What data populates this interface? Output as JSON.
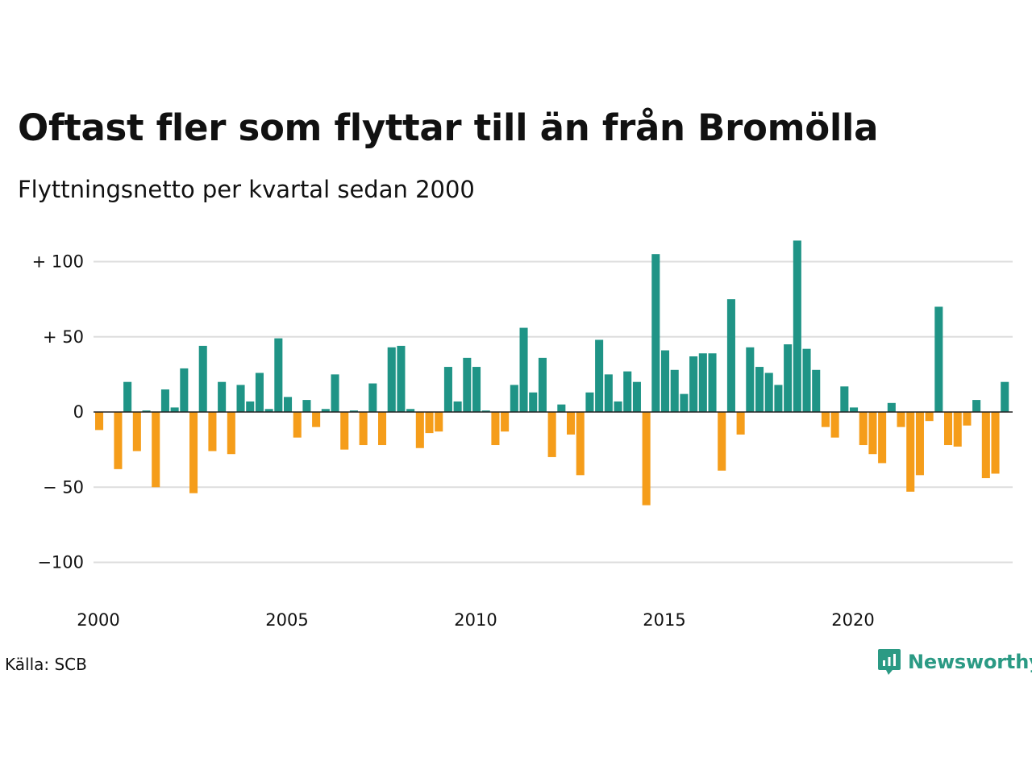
{
  "chart_data": {
    "type": "bar",
    "title": "Oftast fler som flyttar till än från Bromölla",
    "subtitle": "Flyttningsnetto per kvartal sedan 2000",
    "xlabel": "",
    "ylabel": "",
    "ylim": [
      -120,
      115
    ],
    "grid": true,
    "x_start": 2000,
    "x_ticks": [
      2000,
      2005,
      2010,
      2015,
      2020
    ],
    "x_tick_labels": [
      "2000",
      "2005",
      "2010",
      "2015",
      "2020"
    ],
    "y_ticks": [
      100,
      50,
      0,
      -50,
      -100
    ],
    "y_tick_labels": [
      "+ 100",
      "+  50",
      "0",
      "− 50",
      "−100"
    ],
    "positive_color": "#1f9486",
    "negative_color": "#f59d1a",
    "values": [
      -12,
      0,
      -38,
      20,
      -26,
      1,
      -50,
      15,
      3,
      29,
      -54,
      44,
      -26,
      20,
      -28,
      18,
      7,
      26,
      2,
      49,
      10,
      -17,
      8,
      -10,
      2,
      25,
      -25,
      1,
      -22,
      19,
      -22,
      43,
      44,
      2,
      -24,
      -14,
      -13,
      30,
      7,
      36,
      30,
      1,
      -22,
      -13,
      18,
      56,
      13,
      36,
      -30,
      5,
      -15,
      -42,
      13,
      48,
      25,
      7,
      27,
      20,
      -62,
      105,
      41,
      28,
      12,
      37,
      39,
      39,
      -39,
      75,
      -15,
      43,
      30,
      26,
      18,
      45,
      114,
      42,
      28,
      -10,
      -17,
      17,
      3,
      -22,
      -28,
      -34,
      6,
      -10,
      -53,
      -42,
      -6,
      70,
      -22,
      -23,
      -9,
      8,
      -44,
      -41,
      20
    ]
  },
  "footer": {
    "source": "Källa: SCB",
    "brand": "Newsworthy",
    "brand_color": "#2b9a84",
    "brand_icon": "newsworthy-logo-icon"
  }
}
